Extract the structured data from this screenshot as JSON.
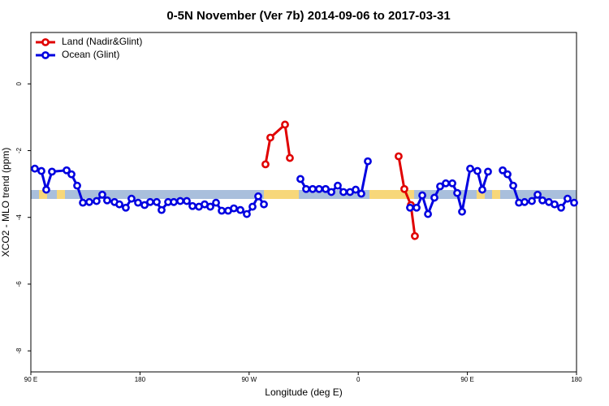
{
  "chart_data": {
    "type": "line",
    "title": "0-5N November (Ver 7b)   2014-09-06 to 2017-03-31",
    "xlabel": "Longitude (deg E)",
    "ylabel": "XCO2 - MLO trend (ppm)",
    "xlim": [
      90,
      540
    ],
    "ylim": [
      -8.63,
      1.54
    ],
    "xticks": [
      {
        "value": 90,
        "label": "90 E"
      },
      180,
      {
        "value": 270,
        "label": "90 W"
      },
      {
        "value": 360,
        "label": "0"
      },
      {
        "value": 450,
        "label": "90 E"
      },
      {
        "value": 540,
        "label": "180"
      }
    ],
    "yticks": [
      0,
      -2,
      -4,
      -6,
      -8
    ],
    "legend": "top-left",
    "series": [
      {
        "name": "Land (Nadir&Glint)",
        "color": "#e00000",
        "x": [
          283.5,
          287.5,
          299.6,
          303.6,
          null,
          393.3,
          398,
          403.4,
          406.7
        ],
        "values": [
          -2.41,
          -1.61,
          -1.22,
          -2.22,
          null,
          -2.17,
          -3.15,
          -3.63,
          -4.56
        ]
      },
      {
        "name": "Ocean (Glint)",
        "color": "#0000e0",
        "x": [
          93.3,
          98.7,
          102.7,
          107.4,
          119.5,
          123.5,
          128.2,
          132.9,
          138.2,
          144.2,
          148.9,
          152.9,
          159,
          163,
          168.3,
          173,
          178.4,
          183.8,
          188.4,
          193.8,
          197.8,
          203.2,
          207.9,
          213.2,
          218.6,
          223.3,
          228.6,
          233.3,
          238,
          242.7,
          247.4,
          252.7,
          257.4,
          262.8,
          268.1,
          272.8,
          277.5,
          282.2,
          null,
          312.3,
          317,
          322.4,
          327.7,
          333.1,
          337.8,
          343.1,
          347.8,
          353.2,
          357.9,
          362.5,
          367.9,
          null,
          402.7,
          408.1,
          412.8,
          417.5,
          422.8,
          427.5,
          432.2,
          437.6,
          441.6,
          445.6,
          452.3,
          458.3,
          462.3,
          467,
          null,
          479.1,
          483.1,
          487.8,
          492.5,
          497.2,
          503.2,
          507.9,
          511.9,
          517.2,
          521.9,
          527.3,
          532.6,
          538
        ],
        "values": [
          -2.54,
          -2.61,
          -3.17,
          -2.63,
          -2.59,
          -2.71,
          -3.05,
          -3.56,
          -3.54,
          -3.51,
          -3.32,
          -3.49,
          -3.54,
          -3.61,
          -3.71,
          -3.44,
          -3.56,
          -3.63,
          -3.54,
          -3.54,
          -3.78,
          -3.54,
          -3.54,
          -3.51,
          -3.51,
          -3.66,
          -3.68,
          -3.61,
          -3.68,
          -3.56,
          -3.8,
          -3.8,
          -3.73,
          -3.78,
          -3.9,
          -3.68,
          -3.37,
          -3.61,
          null,
          -2.85,
          -3.15,
          -3.15,
          -3.15,
          -3.15,
          -3.24,
          -3.05,
          -3.24,
          -3.24,
          -3.17,
          -3.29,
          -2.32,
          null,
          -3.71,
          -3.71,
          -3.34,
          -3.9,
          -3.41,
          -3.07,
          -2.98,
          -2.98,
          -3.27,
          -3.83,
          -2.54,
          -2.61,
          -3.17,
          -2.63,
          null,
          -2.59,
          -2.71,
          -3.05,
          -3.56,
          -3.54,
          -3.51,
          -3.32,
          -3.49,
          -3.54,
          -3.61,
          -3.71,
          -3.44,
          -3.56
        ]
      }
    ]
  }
}
